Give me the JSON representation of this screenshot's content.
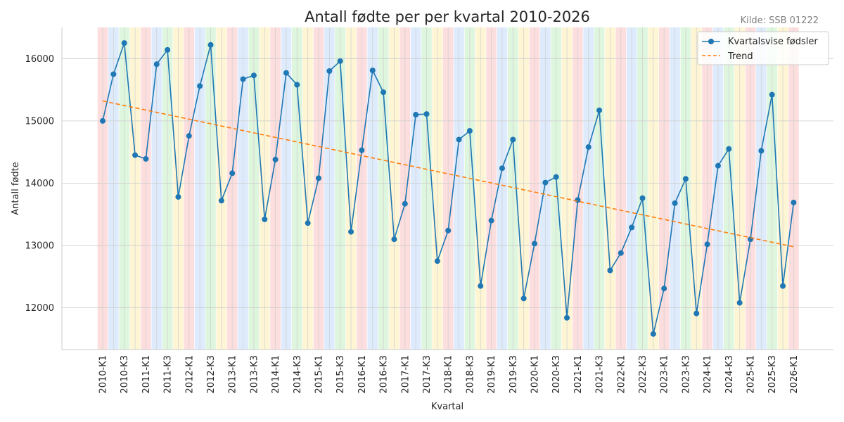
{
  "chart_data": {
    "type": "line",
    "title": "Antall fødte per per kvartal 2010-2026",
    "source": "Kilde: SSB 01222",
    "xlabel": "Kvartal",
    "ylabel": "Antall fødte",
    "ylim": [
      11330,
      16500
    ],
    "yticks": [
      12000,
      13000,
      14000,
      15000,
      16000
    ],
    "grid": true,
    "legend_position": "top-right",
    "quarter_colors": [
      "#fdd8d8",
      "#d8e8fb",
      "#d8f3d8",
      "#fdf3cc"
    ],
    "categories": [
      "2010-K1",
      "2010-K2",
      "2010-K3",
      "2010-K4",
      "2011-K1",
      "2011-K2",
      "2011-K3",
      "2011-K4",
      "2012-K1",
      "2012-K2",
      "2012-K3",
      "2012-K4",
      "2013-K1",
      "2013-K2",
      "2013-K3",
      "2013-K4",
      "2014-K1",
      "2014-K2",
      "2014-K3",
      "2014-K4",
      "2015-K1",
      "2015-K2",
      "2015-K3",
      "2015-K4",
      "2016-K1",
      "2016-K2",
      "2016-K3",
      "2016-K4",
      "2017-K1",
      "2017-K2",
      "2017-K3",
      "2017-K4",
      "2018-K1",
      "2018-K2",
      "2018-K3",
      "2018-K4",
      "2019-K1",
      "2019-K2",
      "2019-K3",
      "2019-K4",
      "2020-K1",
      "2020-K2",
      "2020-K3",
      "2020-K4",
      "2021-K1",
      "2021-K2",
      "2021-K3",
      "2021-K4",
      "2022-K1",
      "2022-K2",
      "2022-K3",
      "2022-K4",
      "2023-K1",
      "2023-K2",
      "2023-K3",
      "2023-K4",
      "2024-K1",
      "2024-K2",
      "2024-K3",
      "2024-K4",
      "2025-K1",
      "2025-K2",
      "2025-K3",
      "2025-K4",
      "2026-K1"
    ],
    "tick_labels": [
      "2010-K1",
      "2010-K3",
      "2011-K1",
      "2011-K3",
      "2012-K1",
      "2012-K3",
      "2013-K1",
      "2013-K3",
      "2014-K1",
      "2014-K3",
      "2015-K1",
      "2015-K3",
      "2016-K1",
      "2016-K3",
      "2017-K1",
      "2017-K3",
      "2018-K1",
      "2018-K3",
      "2019-K1",
      "2019-K3",
      "2020-K1",
      "2020-K3",
      "2021-K1",
      "2021-K3",
      "2022-K1",
      "2022-K3",
      "2023-K1",
      "2023-K3",
      "2024-K1",
      "2024-K3",
      "2025-K1",
      "2025-K3",
      "2026-K1"
    ],
    "series": [
      {
        "name": "Kvartalsvise fødsler",
        "color": "#1f77b4",
        "values": [
          15000,
          15750,
          16250,
          14450,
          14390,
          15910,
          16140,
          13780,
          14760,
          15560,
          16220,
          13720,
          14160,
          15670,
          15730,
          13420,
          14380,
          15770,
          15580,
          13360,
          14080,
          15800,
          15960,
          13220,
          14530,
          15810,
          15460,
          13100,
          13670,
          15100,
          15110,
          12750,
          13240,
          14700,
          14840,
          12350,
          13400,
          14240,
          14700,
          12150,
          13030,
          14010,
          14100,
          11840,
          13730,
          14580,
          15170,
          12600,
          12880,
          13290,
          13760,
          11580,
          12310,
          13680,
          14070,
          11910,
          13020,
          14280,
          14550,
          12080,
          13100,
          14520,
          15420,
          12350,
          13690
        ]
      },
      {
        "name": "Trend",
        "color": "#ff7f0e",
        "dashed": true,
        "values_endpoints": [
          15320,
          12980
        ]
      }
    ]
  }
}
